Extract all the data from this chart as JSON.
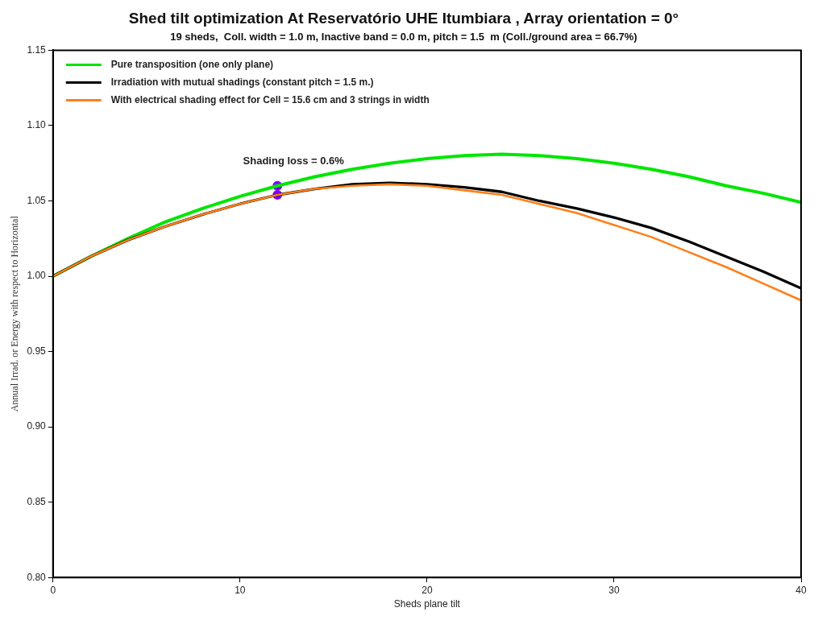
{
  "chart_data": {
    "type": "line",
    "title": "Shed tilt optimization At Reservatório UHE Itumbiara , Array orientation = 0°",
    "subtitle": "19 sheds,  Coll. width = 1.0 m, Inactive band = 0.0 m, pitch = 1.5  m (Coll./ground area = 66.7%)",
    "xlabel": "Sheds plane tilt",
    "ylabel": "Annual Irrad. or Energy with respect to Horizontal",
    "x": [
      0,
      2,
      4,
      6,
      8,
      10,
      12,
      14,
      16,
      18,
      20,
      22,
      24,
      26,
      28,
      30,
      32,
      34,
      36,
      38,
      40
    ],
    "series": [
      {
        "name": "Pure transposition (one only plane)",
        "color": "#00e600",
        "values": [
          1.0,
          1.013,
          1.025,
          1.036,
          1.045,
          1.053,
          1.06,
          1.066,
          1.071,
          1.075,
          1.078,
          1.08,
          1.081,
          1.08,
          1.078,
          1.075,
          1.071,
          1.066,
          1.06,
          1.055,
          1.049
        ]
      },
      {
        "name": "Irradiation with mutual shadings (constant pitch = 1.5 m.)",
        "color": "#000000",
        "values": [
          1.0,
          1.013,
          1.024,
          1.033,
          1.041,
          1.048,
          1.054,
          1.058,
          1.061,
          1.062,
          1.061,
          1.059,
          1.056,
          1.05,
          1.045,
          1.039,
          1.032,
          1.023,
          1.013,
          1.003,
          0.992
        ]
      },
      {
        "name": "With electrical shading effect for Cell = 15.6 cm and 3 strings in width",
        "color": "#ff7f1a",
        "values": [
          1.0,
          1.013,
          1.024,
          1.033,
          1.041,
          1.048,
          1.054,
          1.058,
          1.06,
          1.061,
          1.06,
          1.057,
          1.054,
          1.048,
          1.042,
          1.034,
          1.026,
          1.016,
          1.006,
          0.995,
          0.984
        ]
      },
      {
        "type": "scatter",
        "color": "#8000ff",
        "x": [
          12,
          12
        ],
        "values": [
          1.06,
          1.054
        ],
        "marker": "circle"
      }
    ],
    "annotations": [
      {
        "text": "Shading loss = 0.6%",
        "x": 12,
        "y": 1.06
      }
    ],
    "xlim": [
      0,
      40
    ],
    "xticks": [
      0,
      10,
      20,
      30,
      40
    ],
    "ylim": [
      0.8,
      1.15
    ],
    "yticks": [
      {
        "value": 0.8,
        "label": "0.80"
      },
      {
        "value": 0.85,
        "label": "0.85"
      },
      {
        "value": 0.9,
        "label": "0.90"
      },
      {
        "value": 0.95,
        "label": "0.95"
      },
      {
        "value": 1.0,
        "label": "1.00"
      },
      {
        "value": 1.05,
        "label": "1.05"
      },
      {
        "value": 1.1,
        "label": "1.10"
      },
      {
        "value": 1.15,
        "label": "1.15"
      }
    ],
    "grid": false,
    "legend": "top left",
    "marker": "none",
    "line_style": "solid"
  }
}
